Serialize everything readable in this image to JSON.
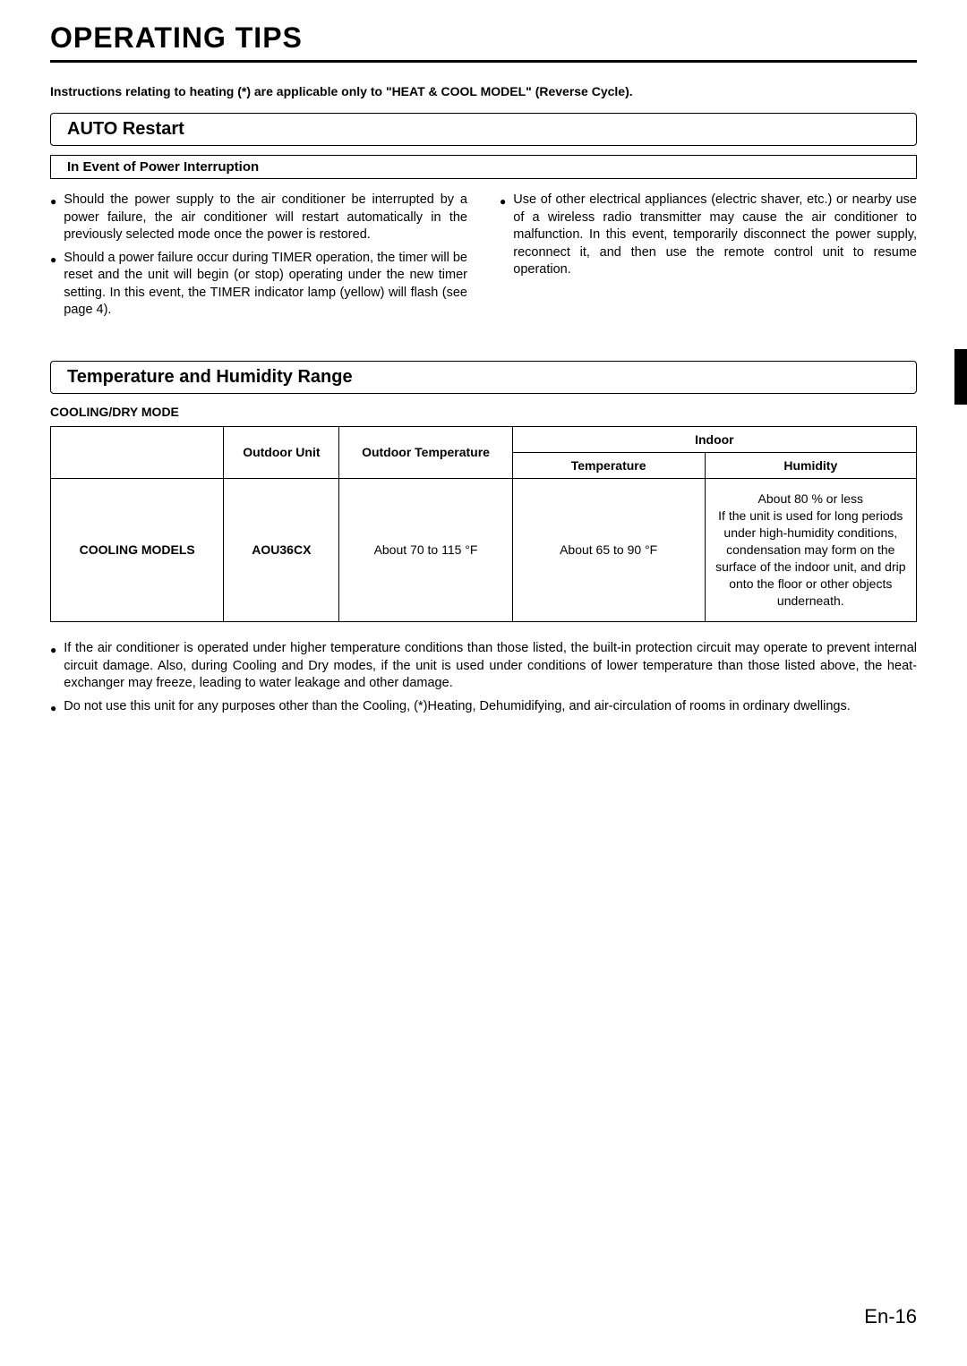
{
  "page": {
    "title": "OPERATING TIPS",
    "instructions": "Instructions relating to heating (*) are applicable only to \"HEAT & COOL MODEL\" (Reverse Cycle).",
    "number": "En-16"
  },
  "section1": {
    "header": "AUTO Restart",
    "subheader": "In Event of Power Interruption",
    "left_bullets": [
      "Should the power supply to the air conditioner be interrupted by a power failure, the air conditioner will restart automatically in the previously selected mode once the power is restored.",
      "Should a power failure occur during TIMER operation, the timer will be reset and the unit will begin (or stop) operating under the new timer setting. In this event, the TIMER indicator lamp (yellow) will flash (see page 4)."
    ],
    "right_bullets": [
      "Use of other electrical appliances (electric shaver, etc.) or nearby use of a wireless radio transmitter may cause the air conditioner to malfunction. In this event, temporarily disconnect the power supply, reconnect it, and then use the remote control unit to resume operation."
    ]
  },
  "section2": {
    "header": "Temperature and Humidity Range",
    "mode_label": "COOLING/DRY MODE",
    "table": {
      "headers": {
        "outdoor_unit": "Outdoor Unit",
        "outdoor_temp": "Outdoor Temperature",
        "indoor": "Indoor",
        "indoor_temp": "Temperature",
        "indoor_humidity": "Humidity"
      },
      "row": {
        "model_label": "COOLING MODELS",
        "unit": "AOU36CX",
        "outdoor_temp": "About 70 to 115 °F",
        "indoor_temp": "About 65 to 90 °F",
        "humidity_line1": "About 80 % or less",
        "humidity_text": "If the unit is used for long periods under high-humidity conditions, condensation may form on the surface of the indoor unit, and drip onto the floor or other objects underneath."
      }
    },
    "notes": [
      "If the air conditioner is operated under higher temperature conditions than those listed, the built-in protection circuit may operate to prevent internal circuit damage. Also, during Cooling and Dry modes, if the unit is used under conditions of lower temperature than those listed above, the heat-exchanger may freeze, leading to water leakage and other damage.",
      "Do not use this unit for any purposes other than the Cooling, (*)Heating, Dehumidifying, and air-circulation of rooms in ordinary dwellings."
    ]
  },
  "colors": {
    "text": "#000000",
    "background": "#ffffff",
    "rule": "#000000",
    "border": "#000000"
  }
}
